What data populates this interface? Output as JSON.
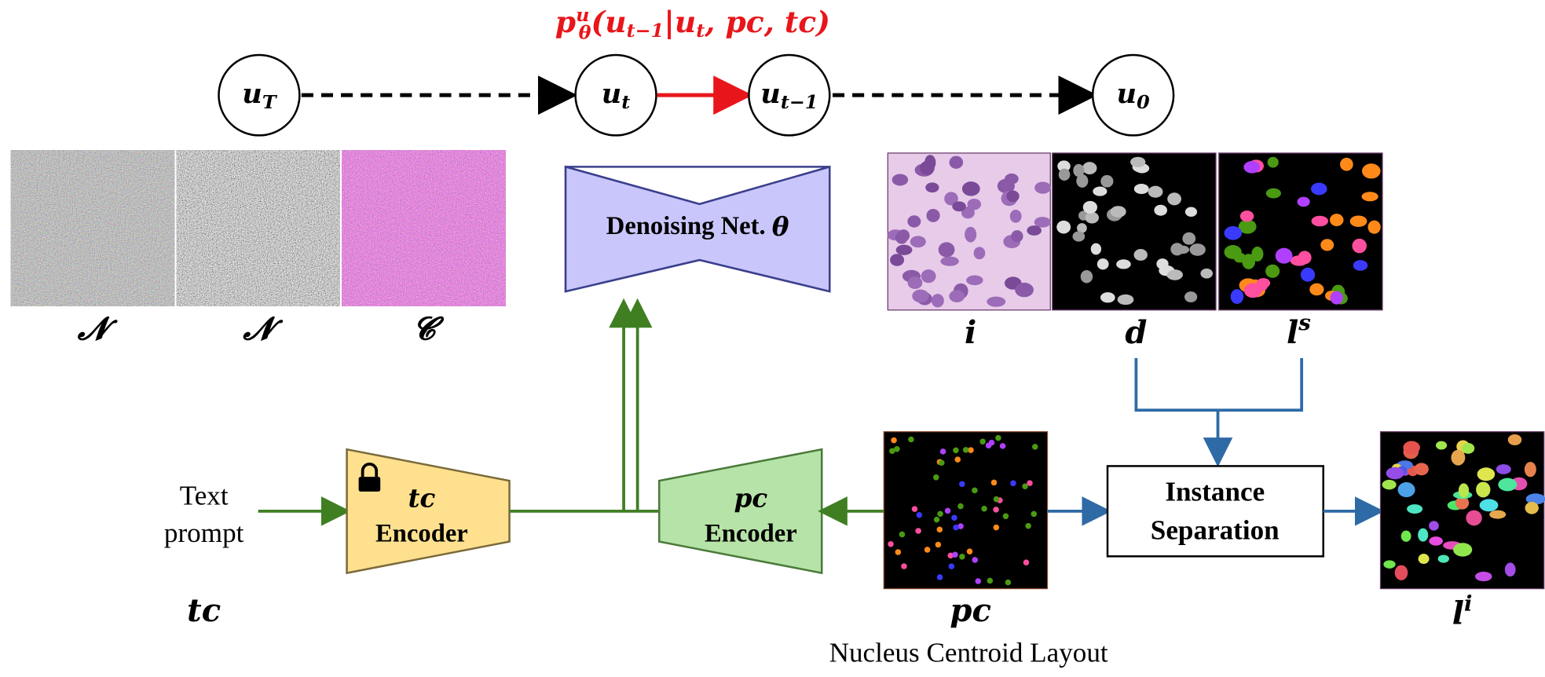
{
  "formula": {
    "base": "p",
    "sup": "u",
    "sub": "θ",
    "open": "(u",
    "sub2": "t−1",
    "mid": "|u",
    "sub3": "t",
    "rest": ", pc, tc)"
  },
  "nodes": [
    {
      "label": "u",
      "sub": "T"
    },
    {
      "label": "u",
      "sub": "t"
    },
    {
      "label": "u",
      "sub": "t−1"
    },
    {
      "label": "u",
      "sub": "0"
    }
  ],
  "noise_labels": [
    "𝓝",
    "𝓝",
    "𝓒"
  ],
  "denoiser": {
    "label": "Denoising Net. ",
    "symbol": "θ"
  },
  "image_labels": [
    {
      "label": "i"
    },
    {
      "label": "d"
    },
    {
      "label": "l",
      "sup": "s"
    }
  ],
  "text_prompt": {
    "line1": "Text",
    "line2": "prompt",
    "label": "tc"
  },
  "tc_encoder": {
    "name": "tc",
    "label": "Encoder"
  },
  "pc_encoder": {
    "name": "pc",
    "label": "Encoder"
  },
  "layout": {
    "label": "pc",
    "caption": "Nucleus Centroid Layout"
  },
  "instance_separation": {
    "line1": "Instance",
    "line2": "Separation"
  },
  "output": {
    "label": "l",
    "sup": "i"
  }
}
